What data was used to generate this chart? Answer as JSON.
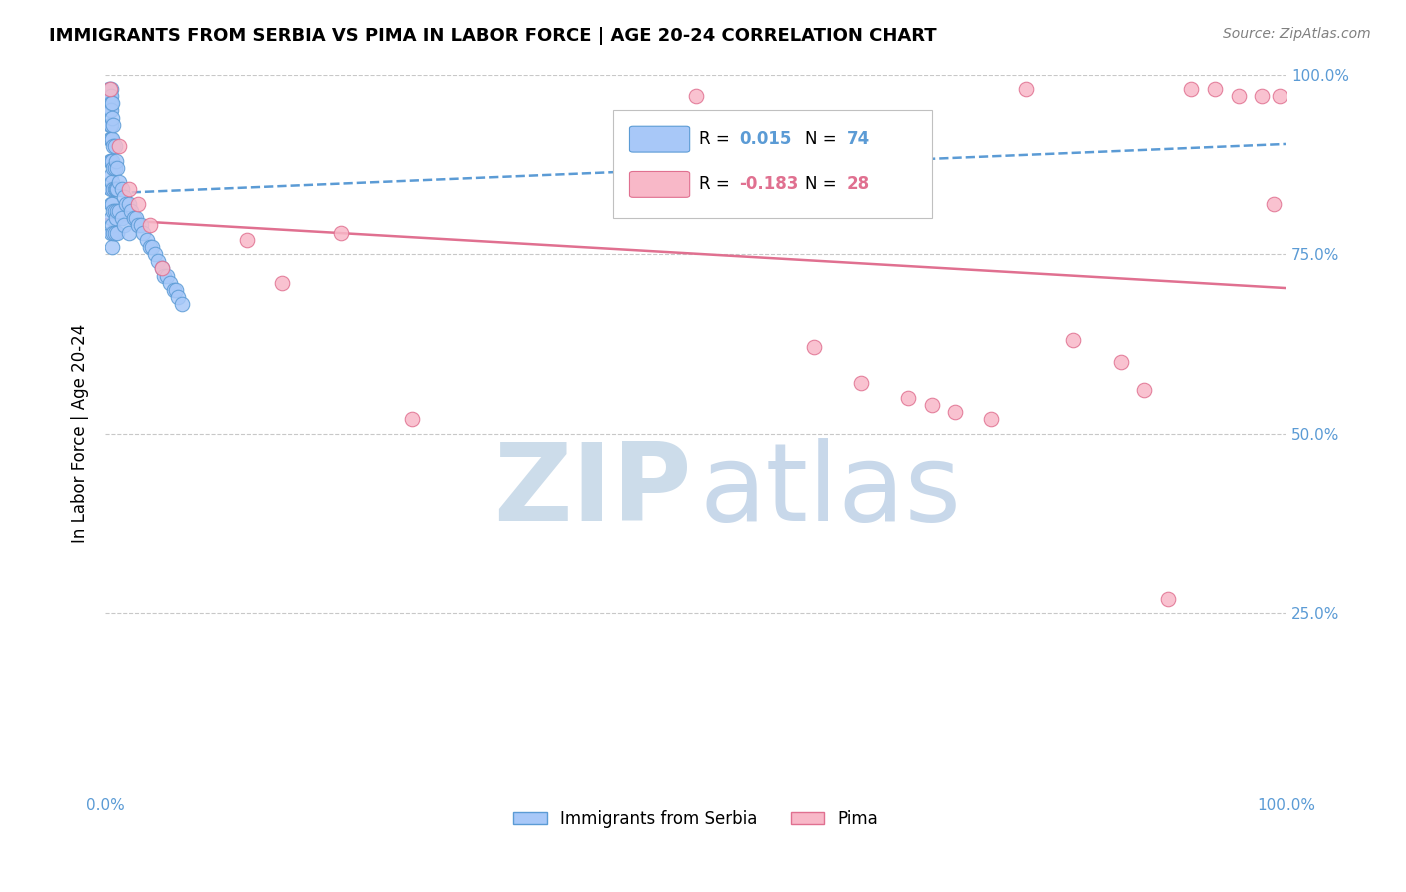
{
  "title": "IMMIGRANTS FROM SERBIA VS PIMA IN LABOR FORCE | AGE 20-24 CORRELATION CHART",
  "source": "Source: ZipAtlas.com",
  "ylabel": "In Labor Force | Age 20-24",
  "xlim": [
    0.0,
    1.0
  ],
  "ylim": [
    0.0,
    1.0
  ],
  "serbia_R": 0.015,
  "serbia_N": 74,
  "pima_R": -0.183,
  "pima_N": 28,
  "serbia_color": "#a8c8f8",
  "serbia_edge_color": "#5b9bd5",
  "pima_color": "#f8b8c8",
  "pima_edge_color": "#e07090",
  "serbia_line_color": "#5b9bd5",
  "pima_line_color": "#e07090",
  "grid_color": "#c8c8c8",
  "right_tick_color": "#5b9bd5",
  "serbia_x": [
    0.003,
    0.003,
    0.004,
    0.004,
    0.004,
    0.004,
    0.004,
    0.004,
    0.005,
    0.005,
    0.005,
    0.005,
    0.005,
    0.005,
    0.005,
    0.005,
    0.005,
    0.005,
    0.005,
    0.005,
    0.006,
    0.006,
    0.006,
    0.006,
    0.006,
    0.006,
    0.006,
    0.006,
    0.007,
    0.007,
    0.007,
    0.007,
    0.007,
    0.007,
    0.008,
    0.008,
    0.008,
    0.008,
    0.008,
    0.009,
    0.009,
    0.009,
    0.01,
    0.01,
    0.01,
    0.01,
    0.012,
    0.012,
    0.014,
    0.014,
    0.016,
    0.016,
    0.018,
    0.02,
    0.02,
    0.022,
    0.024,
    0.026,
    0.028,
    0.03,
    0.032,
    0.035,
    0.038,
    0.04,
    0.042,
    0.045,
    0.048,
    0.05,
    0.052,
    0.055,
    0.058,
    0.06,
    0.062,
    0.065
  ],
  "serbia_y": [
    0.98,
    0.97,
    0.97,
    0.96,
    0.95,
    0.93,
    0.91,
    0.88,
    0.98,
    0.97,
    0.96,
    0.95,
    0.93,
    0.91,
    0.88,
    0.86,
    0.84,
    0.82,
    0.8,
    0.78,
    0.96,
    0.94,
    0.91,
    0.88,
    0.85,
    0.82,
    0.79,
    0.76,
    0.93,
    0.9,
    0.87,
    0.84,
    0.81,
    0.78,
    0.9,
    0.87,
    0.84,
    0.81,
    0.78,
    0.88,
    0.84,
    0.8,
    0.87,
    0.84,
    0.81,
    0.78,
    0.85,
    0.81,
    0.84,
    0.8,
    0.83,
    0.79,
    0.82,
    0.82,
    0.78,
    0.81,
    0.8,
    0.8,
    0.79,
    0.79,
    0.78,
    0.77,
    0.76,
    0.76,
    0.75,
    0.74,
    0.73,
    0.72,
    0.72,
    0.71,
    0.7,
    0.7,
    0.69,
    0.68
  ],
  "pima_x": [
    0.004,
    0.012,
    0.02,
    0.028,
    0.038,
    0.048,
    0.12,
    0.15,
    0.2,
    0.26,
    0.5,
    0.6,
    0.64,
    0.68,
    0.7,
    0.72,
    0.75,
    0.78,
    0.82,
    0.86,
    0.88,
    0.9,
    0.92,
    0.94,
    0.96,
    0.98,
    0.99,
    0.995
  ],
  "pima_y": [
    0.98,
    0.9,
    0.84,
    0.82,
    0.79,
    0.73,
    0.77,
    0.71,
    0.78,
    0.52,
    0.97,
    0.62,
    0.57,
    0.55,
    0.54,
    0.53,
    0.52,
    0.98,
    0.63,
    0.6,
    0.56,
    0.27,
    0.98,
    0.98,
    0.97,
    0.97,
    0.82,
    0.97
  ]
}
